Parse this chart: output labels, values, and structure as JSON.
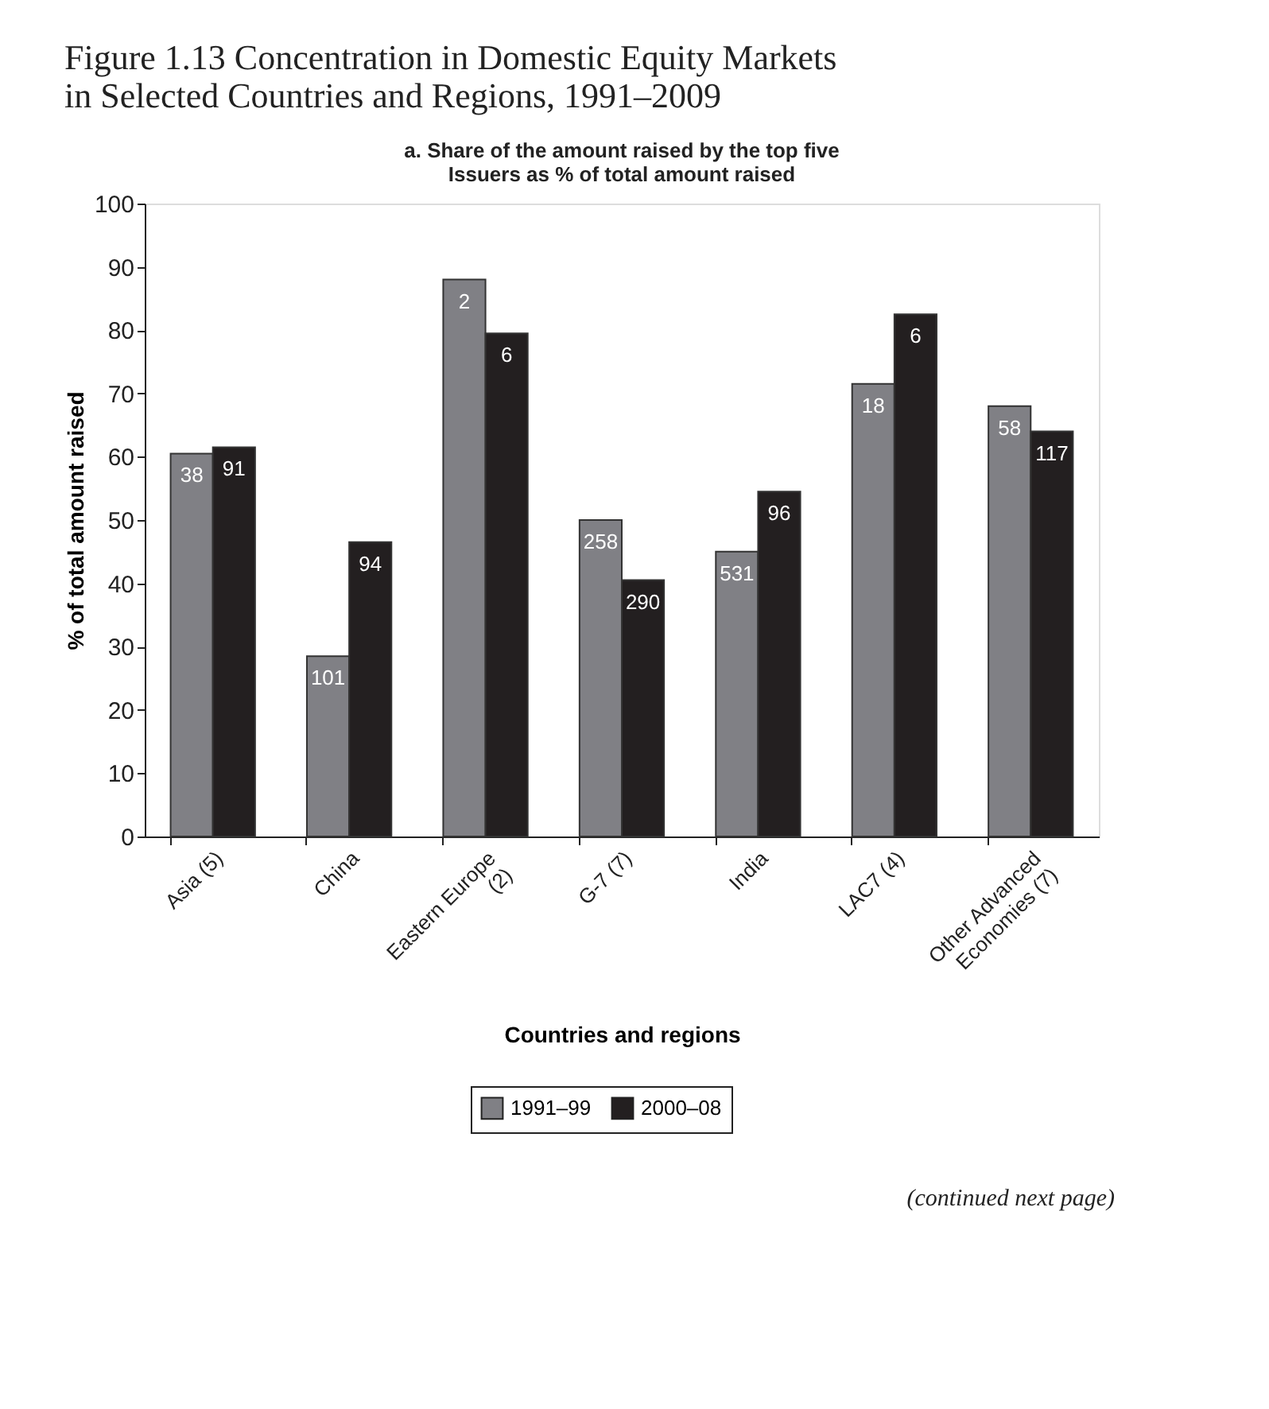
{
  "chart_data": {
    "type": "bar",
    "title": "Figure 1.13 Concentration in Domestic Equity Markets in Selected Countries and Regions, 1991–2009",
    "subtitle": "a. Share of the amount raised by the top five Issuers as % of total amount raised",
    "xlabel": "Countries and regions",
    "ylabel": "% of total amount raised",
    "categories": [
      "Asia (5)",
      "China",
      "Eastern Europe (2)",
      "G-7 (7)",
      "India",
      "LAC7 (4)",
      "Other Advanced Economies (7)"
    ],
    "series": [
      {
        "name": "1991–99",
        "color": "#808085",
        "values": [
          60.5,
          28.5,
          88,
          50,
          45,
          71.5,
          68
        ]
      },
      {
        "name": "2000–08",
        "color": "#231f20",
        "values": [
          61.5,
          46.5,
          79.5,
          40.5,
          54.5,
          82.5,
          64
        ]
      }
    ],
    "ylim": [
      0,
      100
    ],
    "yticks": [
      0,
      10,
      20,
      30,
      40,
      50,
      60,
      70,
      80,
      90,
      100
    ],
    "grid": false,
    "legend": "bottom",
    "annotations": [
      "38",
      "91",
      "101",
      "94",
      "2",
      "6",
      "258",
      "290",
      "531",
      "96",
      "18",
      "6",
      "58",
      "117",
      "(continued next page)"
    ]
  }
}
